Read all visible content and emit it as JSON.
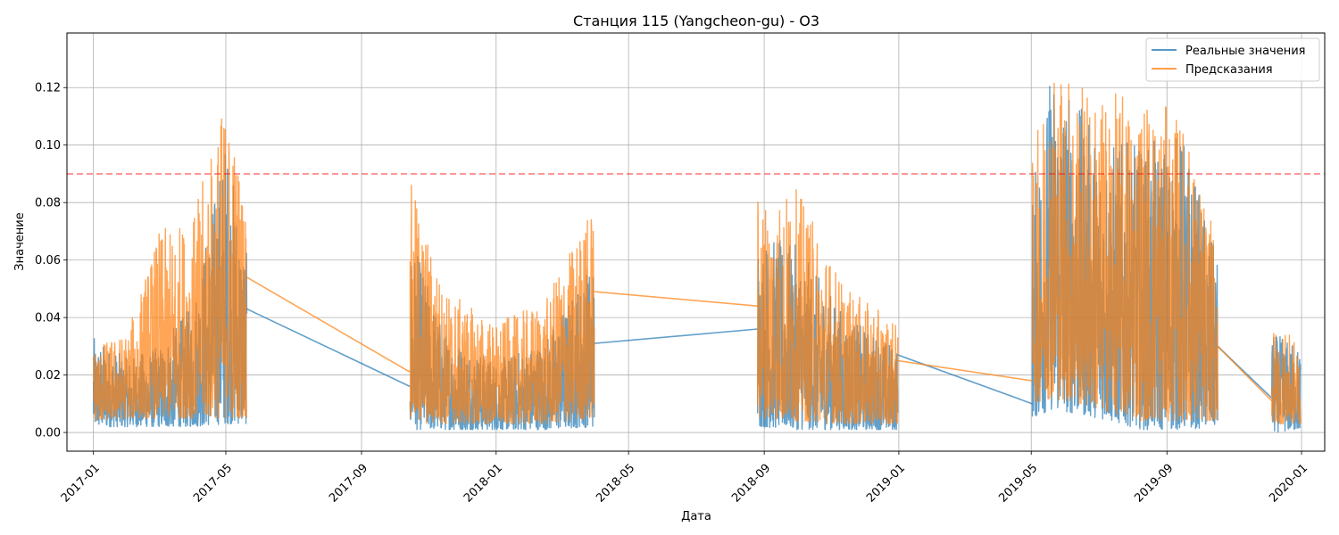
{
  "chart_data": {
    "type": "line",
    "title": "Станция 115 (Yangcheon-gu) - O3",
    "xlabel": "Дата",
    "ylabel": "Значение",
    "x_ticks": [
      "2017-01",
      "2017-05",
      "2017-09",
      "2018-01",
      "2018-05",
      "2018-09",
      "2019-01",
      "2019-05",
      "2019-09",
      "2020-01"
    ],
    "y_ticks": [
      "0.00",
      "0.02",
      "0.04",
      "0.06",
      "0.08",
      "0.10",
      "0.12"
    ],
    "xlim": [
      "2016-12-08",
      "2020-01-22"
    ],
    "ylim": [
      -0.0065,
      0.139
    ],
    "grid": true,
    "legend_position": "top-right",
    "threshold": {
      "value": 0.09,
      "color": "#ff0000",
      "style": "dashed"
    },
    "segments": [
      {
        "start": "2017-01-01",
        "end": "2017-05-20"
      },
      {
        "start": "2017-10-15",
        "end": "2018-03-31"
      },
      {
        "start": "2018-08-26",
        "end": "2018-12-31"
      },
      {
        "start": "2019-05-02",
        "end": "2019-10-17"
      },
      {
        "start": "2019-12-05",
        "end": "2019-12-31"
      }
    ],
    "series": [
      {
        "name": "Реальные значения",
        "color": "#1f77b4",
        "points": [
          {
            "date": "2017-01-01",
            "low": 0.002,
            "high": 0.033
          },
          {
            "date": "2017-02-01",
            "low": 0.002,
            "high": 0.026
          },
          {
            "date": "2017-03-01",
            "low": 0.002,
            "high": 0.03
          },
          {
            "date": "2017-04-01",
            "low": 0.002,
            "high": 0.045
          },
          {
            "date": "2017-05-01",
            "low": 0.003,
            "high": 0.104
          },
          {
            "date": "2017-05-20",
            "low": 0.003,
            "high": 0.062
          },
          {
            "date": "2017-10-15",
            "low": 0.001,
            "high": 0.07
          },
          {
            "date": "2017-11-15",
            "low": 0.001,
            "high": 0.035
          },
          {
            "date": "2018-01-01",
            "low": 0.001,
            "high": 0.025
          },
          {
            "date": "2018-02-15",
            "low": 0.001,
            "high": 0.033
          },
          {
            "date": "2018-03-31",
            "low": 0.002,
            "high": 0.062
          },
          {
            "date": "2018-08-26",
            "low": 0.002,
            "high": 0.07
          },
          {
            "date": "2018-10-01",
            "low": 0.001,
            "high": 0.065
          },
          {
            "date": "2018-11-15",
            "low": 0.001,
            "high": 0.04
          },
          {
            "date": "2018-12-31",
            "low": 0.001,
            "high": 0.03
          },
          {
            "date": "2019-05-02",
            "low": 0.005,
            "high": 0.085
          },
          {
            "date": "2019-05-20",
            "low": 0.008,
            "high": 0.13
          },
          {
            "date": "2019-07-01",
            "low": 0.005,
            "high": 0.103
          },
          {
            "date": "2019-08-10",
            "low": 0.001,
            "high": 0.1
          },
          {
            "date": "2019-09-15",
            "low": 0.001,
            "high": 0.105
          },
          {
            "date": "2019-10-17",
            "low": 0.002,
            "high": 0.06
          },
          {
            "date": "2019-12-05",
            "low": 0.0,
            "high": 0.035
          },
          {
            "date": "2019-12-31",
            "low": 0.001,
            "high": 0.03
          }
        ],
        "gap_lines": [
          {
            "from": {
              "date": "2017-05-20",
              "value": 0.043
            },
            "to": {
              "date": "2017-10-15",
              "value": 0.016
            }
          },
          {
            "from": {
              "date": "2018-03-31",
              "value": 0.031
            },
            "to": {
              "date": "2018-08-26",
              "value": 0.036
            }
          },
          {
            "from": {
              "date": "2018-12-31",
              "value": 0.027
            },
            "to": {
              "date": "2019-05-02",
              "value": 0.01
            }
          },
          {
            "from": {
              "date": "2019-10-17",
              "value": 0.03
            },
            "to": {
              "date": "2019-12-05",
              "value": 0.012
            }
          }
        ]
      },
      {
        "name": "Предсказания",
        "color": "#ff7f0e",
        "points": [
          {
            "date": "2017-01-01",
            "low": 0.004,
            "high": 0.03
          },
          {
            "date": "2017-02-01",
            "low": 0.005,
            "high": 0.035
          },
          {
            "date": "2017-03-01",
            "low": 0.005,
            "high": 0.07
          },
          {
            "date": "2017-04-01",
            "low": 0.005,
            "high": 0.075
          },
          {
            "date": "2017-05-01",
            "low": 0.005,
            "high": 0.118
          },
          {
            "date": "2017-05-20",
            "low": 0.005,
            "high": 0.083
          },
          {
            "date": "2017-10-15",
            "low": 0.003,
            "high": 0.088
          },
          {
            "date": "2017-11-15",
            "low": 0.003,
            "high": 0.05
          },
          {
            "date": "2018-01-01",
            "low": 0.003,
            "high": 0.038
          },
          {
            "date": "2018-02-15",
            "low": 0.003,
            "high": 0.046
          },
          {
            "date": "2018-03-31",
            "low": 0.005,
            "high": 0.082
          },
          {
            "date": "2018-08-26",
            "low": 0.005,
            "high": 0.083
          },
          {
            "date": "2018-10-01",
            "low": 0.004,
            "high": 0.085
          },
          {
            "date": "2018-11-15",
            "low": 0.003,
            "high": 0.05
          },
          {
            "date": "2018-12-31",
            "low": 0.003,
            "high": 0.038
          },
          {
            "date": "2019-05-02",
            "low": 0.01,
            "high": 0.095
          },
          {
            "date": "2019-05-20",
            "low": 0.012,
            "high": 0.133
          },
          {
            "date": "2019-07-01",
            "low": 0.008,
            "high": 0.117
          },
          {
            "date": "2019-08-10",
            "low": 0.004,
            "high": 0.12
          },
          {
            "date": "2019-09-15",
            "low": 0.004,
            "high": 0.109
          },
          {
            "date": "2019-10-17",
            "low": 0.004,
            "high": 0.065
          },
          {
            "date": "2019-12-05",
            "low": 0.003,
            "high": 0.037
          },
          {
            "date": "2019-12-31",
            "low": 0.003,
            "high": 0.032
          }
        ],
        "gap_lines": [
          {
            "from": {
              "date": "2017-05-20",
              "value": 0.054
            },
            "to": {
              "date": "2017-10-15",
              "value": 0.021
            }
          },
          {
            "from": {
              "date": "2018-03-31",
              "value": 0.049
            },
            "to": {
              "date": "2018-08-26",
              "value": 0.044
            }
          },
          {
            "from": {
              "date": "2018-12-31",
              "value": 0.025
            },
            "to": {
              "date": "2019-05-02",
              "value": 0.018
            }
          },
          {
            "from": {
              "date": "2019-10-17",
              "value": 0.03
            },
            "to": {
              "date": "2019-12-05",
              "value": 0.011
            }
          }
        ]
      }
    ]
  }
}
